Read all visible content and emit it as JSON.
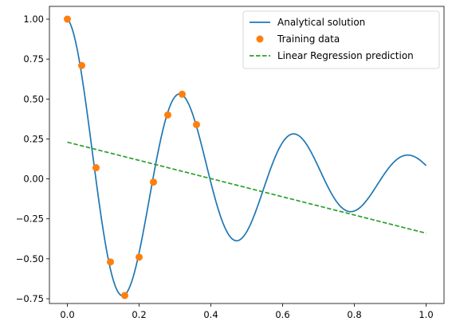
{
  "colors": {
    "analytical": "#1f77b4",
    "training": "#ff7f0e",
    "regression": "#2ca02c"
  },
  "chart_data": {
    "type": "line",
    "title": "",
    "xlabel": "",
    "ylabel": "",
    "xlim": [
      -0.05,
      1.05
    ],
    "ylim": [
      -0.78,
      1.08
    ],
    "grid": false,
    "legend_position": "top-right",
    "xticks": [
      0.0,
      0.2,
      0.4,
      0.6,
      0.8,
      1.0
    ],
    "xtick_labels": [
      "0.0",
      "0.2",
      "0.4",
      "0.6",
      "0.8",
      "1.0"
    ],
    "yticks": [
      -0.75,
      -0.5,
      -0.25,
      0.0,
      0.25,
      0.5,
      0.75,
      1.0
    ],
    "ytick_labels": [
      "−0.75",
      "−0.50",
      "−0.25",
      "0.00",
      "0.25",
      "0.50",
      "0.75",
      "1.00"
    ],
    "series": [
      {
        "name": "Analytical solution",
        "style": "solid-line",
        "function": {
          "form": "damped-cosine",
          "decay": 2.0,
          "omega": 19.76
        }
      },
      {
        "name": "Training data",
        "style": "markers",
        "x": [
          0.0,
          0.04,
          0.08,
          0.12,
          0.16,
          0.2,
          0.24,
          0.28,
          0.32,
          0.36
        ],
        "y": [
          1.0,
          0.71,
          0.07,
          -0.52,
          -0.73,
          -0.49,
          -0.02,
          0.4,
          0.53,
          0.34
        ]
      },
      {
        "name": "Linear Regression prediction",
        "style": "dashed-line",
        "x": [
          0.0,
          1.0
        ],
        "y": [
          0.23,
          -0.34
        ]
      }
    ]
  }
}
